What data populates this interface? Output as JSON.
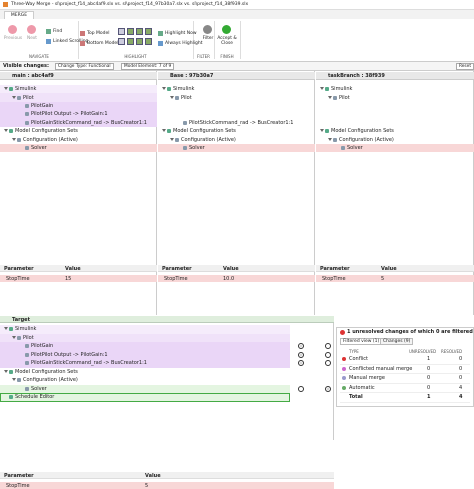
{
  "window": {
    "title": "Three-Way Merge - sl\\project_f14_abc4af9.slx vs. sl\\project_f14_97b30a7.slx vs. sl\\project_f14_38f939.slx"
  },
  "tab": "MERGE",
  "toolstrip": [
    {
      "label": "NAVIGATE",
      "buttons": [
        "Previous",
        "Next",
        "Find",
        "Linked Scrolling"
      ]
    },
    {
      "label": "HIGHLIGHT",
      "buttons": [
        "Top Model",
        "Bottom Model",
        "Highlight Now",
        "Always Highlight"
      ]
    },
    {
      "label": "FILTER",
      "buttons": [
        "Filter"
      ]
    },
    {
      "label": "FINISH",
      "buttons": [
        "Accept & Close"
      ]
    }
  ],
  "filter_bar": {
    "label": "Visible changes:",
    "chips": [
      "Change Type: Functional",
      "Model Element: 7 of 9"
    ],
    "reset": "Reset"
  },
  "panels": [
    {
      "header": "main : abc4af9",
      "tree": [
        {
          "label": "Simulink",
          "color": "#f5ecfb",
          "children": [
            {
              "label": "Pilot",
              "color": "#f0e2f9",
              "children": [
                {
                  "label": "PilotGain",
                  "color": "#ead6f7"
                },
                {
                  "label": "PilotPilot Output -> PilotGain:1",
                  "color": "#ead6f7"
                },
                {
                  "label": "PilotGainStickCommand_rad -> BusCreator1:1",
                  "color": "#ead6f7"
                }
              ]
            }
          ]
        },
        {
          "label": "Model Configuration Sets",
          "children": [
            {
              "label": "Configuration (Active)",
              "children": [
                {
                  "label": "Solver",
                  "color": "#f8d7d7"
                }
              ]
            }
          ]
        }
      ],
      "params": {
        "columns": [
          "Parameter",
          "Value"
        ],
        "rows": [
          [
            "StopTime",
            "15"
          ]
        ]
      }
    },
    {
      "header": "Base : 97b30a7",
      "tree": [
        {
          "label": "Simulink",
          "children": [
            {
              "label": "Pilot",
              "children": [
                null,
                null,
                {
                  "label": "PilotStickCommand_rad -> BusCreator1:1"
                }
              ]
            }
          ]
        },
        {
          "label": "Model Configuration Sets",
          "children": [
            {
              "label": "Configuration (Active)",
              "children": [
                {
                  "label": "Solver",
                  "color": "#f8d7d7"
                }
              ]
            }
          ]
        }
      ],
      "params": {
        "columns": [
          "Parameter",
          "Value"
        ],
        "rows": [
          [
            "StopTime",
            "10.0"
          ]
        ]
      }
    },
    {
      "header": "taskBranch : 38f939",
      "tree": [
        {
          "label": "Simulink",
          "children": [
            {
              "label": "Pilot",
              "children": [
                null,
                null,
                null
              ]
            }
          ]
        },
        {
          "label": "Model Configuration Sets",
          "children": [
            {
              "label": "Configuration (Active)",
              "children": [
                {
                  "label": "Solver",
                  "color": "#f8d7d7"
                }
              ]
            }
          ]
        }
      ],
      "params": {
        "columns": [
          "Parameter",
          "Value"
        ],
        "rows": [
          [
            "StopTime",
            "5"
          ]
        ]
      }
    }
  ],
  "target": {
    "header": "Target",
    "tree": [
      {
        "label": "Simulink",
        "color": "#f5ecfb",
        "children": [
          {
            "label": "Pilot",
            "color": "#f0e2f9",
            "children": [
              {
                "label": "PilotGain",
                "color": "#ead6f7",
                "choice": 0
              },
              {
                "label": "PilotPilot Output -> PilotGain:1",
                "color": "#ead6f7",
                "choice": 0
              },
              {
                "label": "PilotGainStickCommand_rad -> BusCreator1:1",
                "color": "#ead6f7",
                "choice": 0
              }
            ]
          }
        ]
      },
      {
        "label": "Model Configuration Sets",
        "children": [
          {
            "label": "Configuration (Active)",
            "children": [
              {
                "label": "Solver",
                "color": "#e4f5e1",
                "choice": 1
              }
            ]
          }
        ]
      },
      {
        "label": "Schedule Editor",
        "color": "#e4f5e1"
      }
    ],
    "params": {
      "columns": [
        "Parameter",
        "Value"
      ],
      "rows": [
        [
          "StopTime",
          "5"
        ]
      ]
    }
  },
  "summary": {
    "title": "1 unresolved changes of which 0 are filtered",
    "tabs": [
      "Filtered view (1)",
      "Changes (9)"
    ],
    "columns": [
      "TYPE",
      "UNRESOLVED",
      "RESOLVED"
    ],
    "rows": [
      [
        "Conflict",
        "1",
        "0"
      ],
      [
        "Conflicted manual merge",
        "0",
        "0"
      ],
      [
        "Manual merge",
        "0",
        "0"
      ],
      [
        "Automatic",
        "0",
        "4"
      ],
      [
        "Total",
        "1",
        "4"
      ]
    ]
  }
}
